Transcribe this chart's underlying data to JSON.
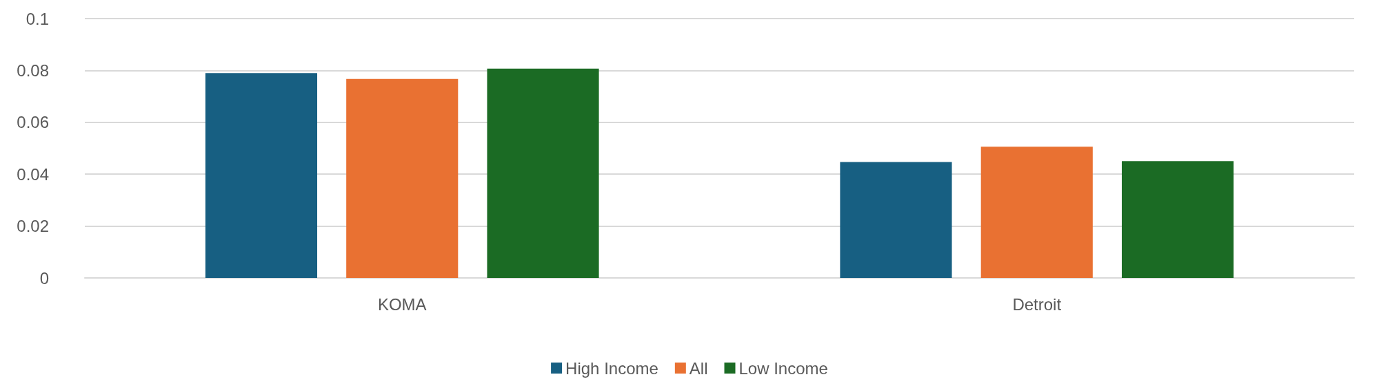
{
  "chart_data": {
    "type": "bar",
    "categories": [
      "KOMA",
      "Detroit"
    ],
    "series": [
      {
        "name": "High Income",
        "color": "#175f82",
        "values": [
          0.079,
          0.0447
        ]
      },
      {
        "name": "All",
        "color": "#e97132",
        "values": [
          0.0767,
          0.0506
        ]
      },
      {
        "name": "Low Income",
        "color": "#1b6b24",
        "values": [
          0.0807,
          0.045
        ]
      }
    ],
    "ylim": [
      0,
      0.1
    ],
    "yticks": [
      0,
      0.02,
      0.04,
      0.06,
      0.08,
      0.1
    ],
    "grid": "y",
    "legend": "bottom"
  }
}
